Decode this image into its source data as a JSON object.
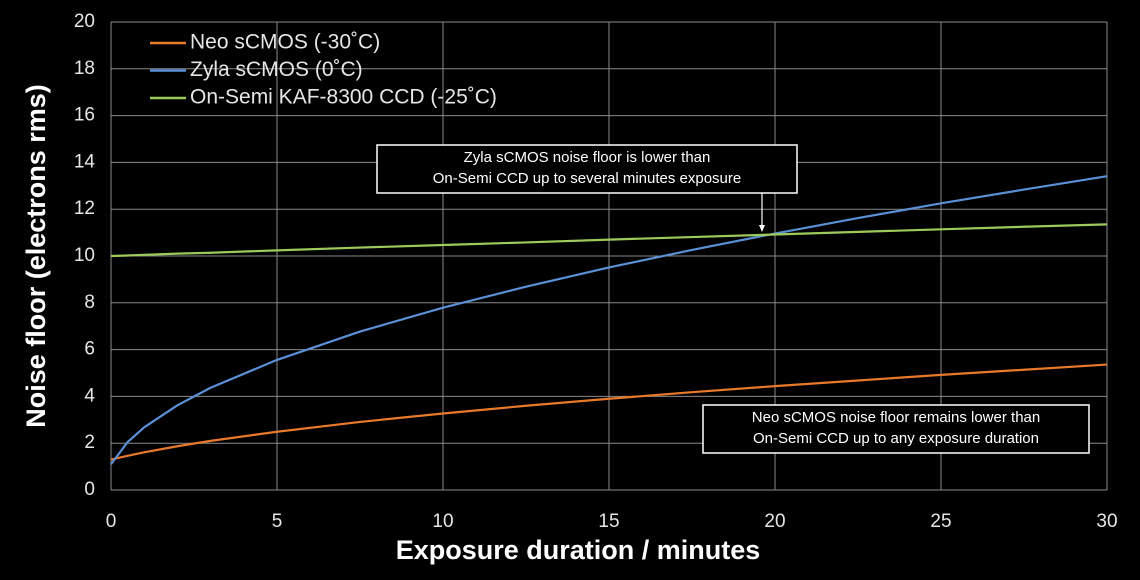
{
  "chart_data": {
    "type": "line",
    "x_label": "Exposure duration / minutes",
    "y_label": "Noise floor (electrons rms)",
    "x": [
      0,
      0.5,
      1,
      2,
      3,
      5,
      7.5,
      10,
      12.5,
      15,
      17.5,
      20,
      22.5,
      25,
      27.5,
      30
    ],
    "series": [
      {
        "name": "Neo sCMOS (-30˚C)",
        "color": "#e8792b",
        "values": [
          1.3,
          1.46,
          1.61,
          1.87,
          2.1,
          2.49,
          2.91,
          3.27,
          3.6,
          3.9,
          4.18,
          4.44,
          4.68,
          4.92,
          5.14,
          5.36
        ]
      },
      {
        "name": "Zyla sCMOS (0˚C)",
        "color": "#5b8fd6",
        "values": [
          1.1,
          2.05,
          2.68,
          3.62,
          4.37,
          5.56,
          6.77,
          7.79,
          8.69,
          9.51,
          10.26,
          10.96,
          11.62,
          12.25,
          12.84,
          13.41
        ]
      },
      {
        "name": "On-Semi  KAF-8300  CCD (-25˚C)",
        "color": "#9dcb5b",
        "values": [
          10,
          10.02,
          10.05,
          10.1,
          10.14,
          10.24,
          10.36,
          10.47,
          10.58,
          10.7,
          10.81,
          10.92,
          11.03,
          11.14,
          11.25,
          11.35
        ]
      }
    ],
    "xlim": [
      0,
      30
    ],
    "xticks": [
      0,
      5,
      10,
      15,
      20,
      25,
      30
    ],
    "ylim": [
      0,
      20
    ],
    "yticks": [
      0,
      2,
      4,
      6,
      8,
      10,
      12,
      14,
      16,
      18,
      20
    ],
    "grid": true,
    "legend_position": "upper-left",
    "annotations": [
      {
        "lines": [
          "Zyla sCMOS noise floor is lower than",
          "On-Semi CCD up to several minutes exposure"
        ]
      },
      {
        "lines": [
          "Neo sCMOS noise floor remains lower than",
          "On-Semi CCD up to any exposure duration"
        ]
      }
    ]
  }
}
